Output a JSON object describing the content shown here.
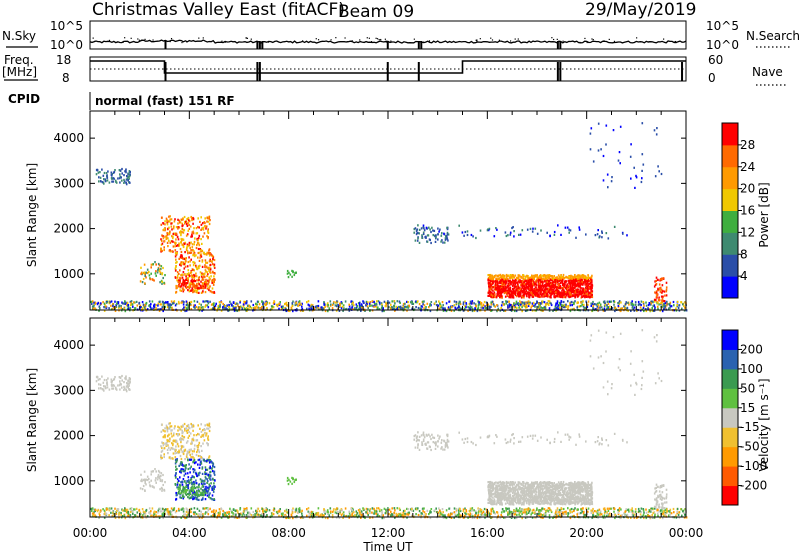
{
  "header": {
    "title": "Christmas Valley East (fitACF)",
    "beam": "Beam 09",
    "date": "29/May/2019"
  },
  "summary_panels": {
    "nsky": {
      "left_label": "N.Sky",
      "left_ticks": [
        "10^5",
        "10^0"
      ],
      "right_label": "N.Search",
      "right_ticks": [
        "10^5",
        "10^0"
      ]
    },
    "freq": {
      "left_label_1": "Freq.",
      "left_label_2": "[MHz]",
      "left_ticks": [
        "18",
        "8"
      ],
      "right_label": "Nave",
      "right_ticks": [
        "60",
        "0"
      ]
    },
    "cpid": {
      "label": "CPID",
      "text": "normal (fast) 151 RF"
    }
  },
  "time_axis": {
    "label": "Time UT",
    "ticks": [
      "00:00",
      "04:00",
      "08:00",
      "12:00",
      "16:00",
      "20:00",
      "00:00"
    ]
  },
  "colors": {
    "power_scale": [
      "#0000ff",
      "#2a4ea8",
      "#3e8a70",
      "#3fae3f",
      "#f0c800",
      "#ff9a00",
      "#ff6a00",
      "#ff0000"
    ],
    "velocity_scale": [
      "#ff0000",
      "#ff5a00",
      "#ff9a00",
      "#f0c030",
      "#c8c8c0",
      "#5fc040",
      "#3a9a50",
      "#2a62b0",
      "#0000ff"
    ],
    "gray_scatter": "#c8c8c0"
  },
  "chart_data": [
    {
      "type": "heatmap",
      "panel": "power",
      "ylabel": "Slant Range [km]",
      "yticks": [
        1000,
        2000,
        3000,
        4000
      ],
      "ylim": [
        200,
        4600
      ],
      "xlim_hours": [
        0,
        24
      ],
      "colorbar_label": "Power [dB]",
      "colorbar_ticks": [
        "4",
        "8",
        "12",
        "16",
        "20",
        "24",
        "28"
      ],
      "colorbar_range": [
        0,
        32
      ]
    },
    {
      "type": "heatmap",
      "panel": "velocity",
      "ylabel": "Slant Range [km]",
      "yticks": [
        1000,
        2000,
        3000,
        4000
      ],
      "ylim": [
        200,
        4600
      ],
      "xlim_hours": [
        0,
        24
      ],
      "colorbar_label": "Velocity [m s⁻¹]",
      "colorbar_ticks": [
        "-200",
        "-100",
        "-50",
        "-15",
        "15",
        "50",
        "100",
        "200"
      ]
    }
  ]
}
